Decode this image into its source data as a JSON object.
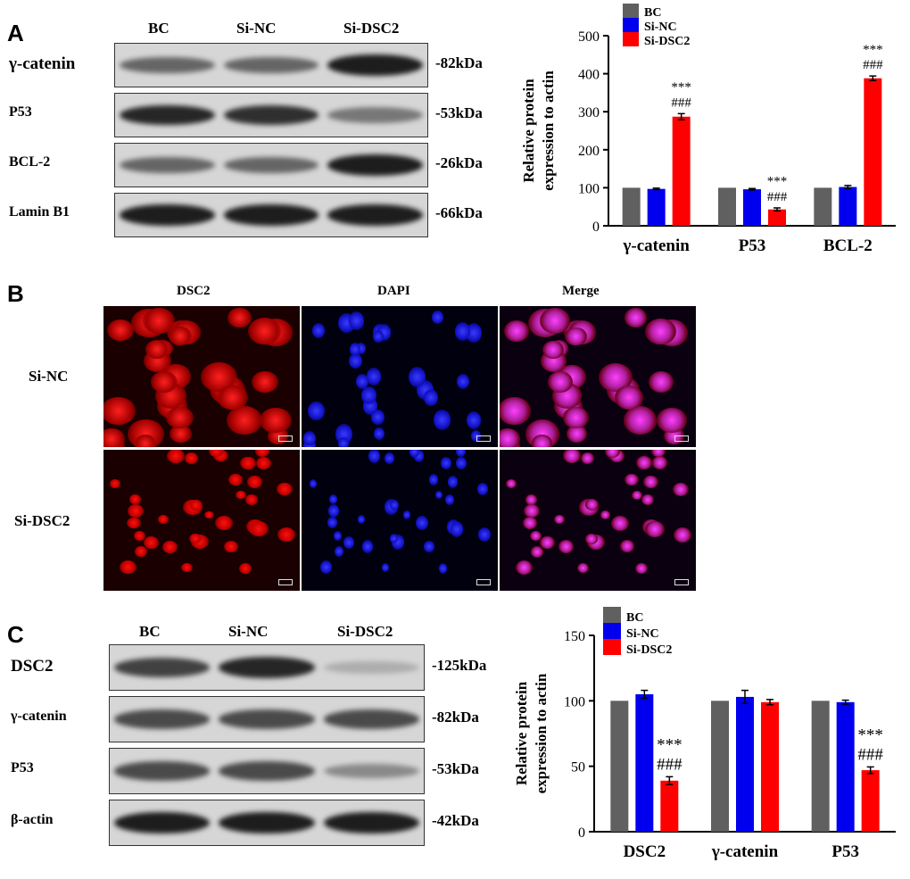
{
  "panels": {
    "a": {
      "letter": "A",
      "lanes": [
        "BC",
        "Si-NC",
        "Si-DSC2"
      ],
      "rows": [
        {
          "label": "γ-catenin",
          "kda": "-82kDa",
          "intensity": [
            0.55,
            0.55,
            0.95
          ]
        },
        {
          "label": "P53",
          "kda": "-53kDa",
          "intensity": [
            0.9,
            0.85,
            0.45
          ]
        },
        {
          "label": "BCL-2",
          "kda": "-26kDa",
          "intensity": [
            0.55,
            0.55,
            0.95
          ]
        },
        {
          "label": "Lamin B1",
          "kda": "-66kDa",
          "intensity": [
            0.95,
            0.95,
            0.95
          ]
        }
      ]
    },
    "b": {
      "letter": "B",
      "columns": [
        "DSC2",
        "DAPI",
        "Merge"
      ],
      "rows": [
        "Si-NC",
        "Si-DSC2"
      ]
    },
    "c": {
      "letter": "C",
      "lanes": [
        "BC",
        "Si-NC",
        "Si-DSC2"
      ],
      "rows": [
        {
          "label": "DSC2",
          "kda": "-125kDa",
          "intensity": [
            0.75,
            0.9,
            0.15
          ]
        },
        {
          "label": "γ-catenin",
          "kda": "-82kDa",
          "intensity": [
            0.7,
            0.7,
            0.7
          ]
        },
        {
          "label": "P53",
          "kda": "-53kDa",
          "intensity": [
            0.7,
            0.7,
            0.35
          ]
        },
        {
          "label": "β-actin",
          "kda": "-42kDa",
          "intensity": [
            0.95,
            0.95,
            0.95
          ]
        }
      ]
    }
  },
  "colors": {
    "BC": "#606060",
    "Si-NC": "#0000ee",
    "Si-DSC2": "#ff0000"
  },
  "chart_data": [
    {
      "type": "bar",
      "categories": [
        "γ-catenin",
        "P53",
        "BCL-2"
      ],
      "series": [
        {
          "name": "BC",
          "values": [
            100,
            100,
            100
          ],
          "errors": [
            0,
            0,
            0
          ]
        },
        {
          "name": "Si-NC",
          "values": [
            97,
            96,
            102
          ],
          "errors": [
            2,
            2,
            4
          ]
        },
        {
          "name": "Si-DSC2",
          "values": [
            287,
            43,
            388
          ],
          "errors": [
            8,
            4,
            6
          ]
        }
      ],
      "annotations": [
        {
          "category": "γ-catenin",
          "series": "Si-DSC2",
          "stars": "***",
          "hash": "###"
        },
        {
          "category": "P53",
          "series": "Si-DSC2",
          "stars": "***",
          "hash": "###"
        },
        {
          "category": "BCL-2",
          "series": "Si-DSC2",
          "stars": "***",
          "hash": "###"
        }
      ],
      "ylabel": "Relative protein\nexpression to actin",
      "ylim": [
        0,
        500
      ],
      "yticks": [
        0,
        100,
        200,
        300,
        400,
        500
      ],
      "legend": "top-left"
    },
    {
      "type": "bar",
      "categories": [
        "DSC2",
        "γ-catenin",
        "P53"
      ],
      "series": [
        {
          "name": "BC",
          "values": [
            100,
            100,
            100
          ],
          "errors": [
            0,
            0,
            0
          ]
        },
        {
          "name": "Si-NC",
          "values": [
            105,
            103,
            99
          ],
          "errors": [
            3,
            5,
            1.5
          ]
        },
        {
          "name": "Si-DSC2",
          "values": [
            39,
            99,
            47
          ],
          "errors": [
            3,
            2,
            2.5
          ]
        }
      ],
      "annotations": [
        {
          "category": "DSC2",
          "series": "Si-DSC2",
          "stars": "***",
          "hash": "###"
        },
        {
          "category": "P53",
          "series": "Si-DSC2",
          "stars": "***",
          "hash": "###"
        }
      ],
      "ylabel": "Relative protein\nexpression to actin",
      "ylim": [
        0,
        150
      ],
      "yticks": [
        0,
        50,
        100,
        150
      ],
      "legend": "top-left"
    }
  ]
}
